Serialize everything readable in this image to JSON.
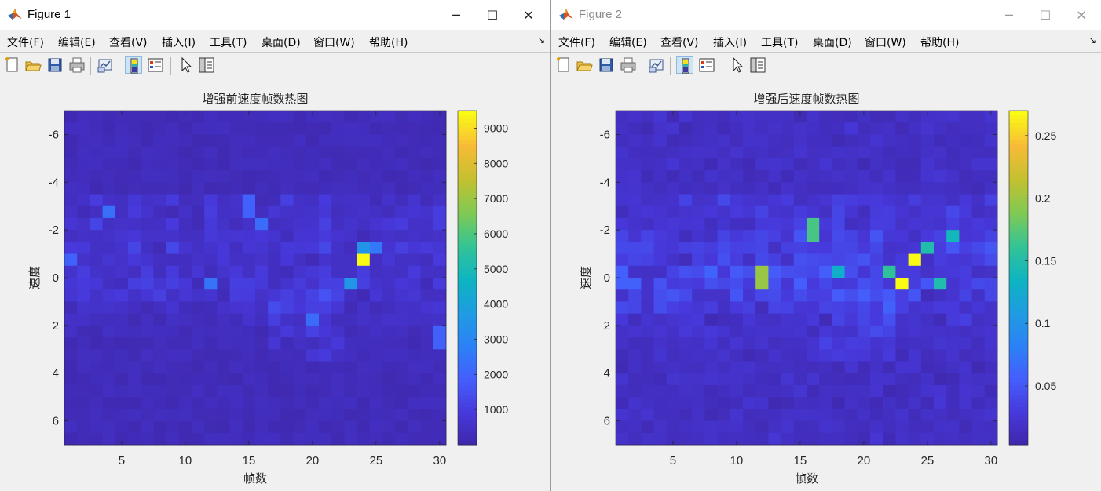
{
  "menu_labels": [
    "文件(F)",
    "编辑(E)",
    "查看(V)",
    "插入(I)",
    "工具(T)",
    "桌面(D)",
    "窗口(W)",
    "帮助(H)"
  ],
  "windows": [
    {
      "title": "Figure 1",
      "active": true,
      "chart_data": {
        "type": "heatmap",
        "title": "增强前速度帧数热图",
        "xlabel": "帧数",
        "ylabel": "速度",
        "x_ticks": [
          "5",
          "10",
          "15",
          "20",
          "25",
          "30"
        ],
        "y_ticks": [
          "-6",
          "-4",
          "-2",
          "0",
          "2",
          "4",
          "6"
        ],
        "xlim": [
          0.5,
          30.5
        ],
        "ylim": [
          -7,
          7
        ],
        "y_reversed": true,
        "colorbar_ticks": [
          "1000",
          "2000",
          "3000",
          "4000",
          "5000",
          "6000",
          "7000",
          "8000",
          "9000"
        ],
        "clim": [
          0,
          9500
        ],
        "colormap": "parula",
        "hot_spots": [
          {
            "frame": 24,
            "speed": -0.9,
            "value": 9500
          },
          {
            "frame": 24,
            "speed": -1.1,
            "value": 3500
          },
          {
            "frame": 25,
            "speed": -1.3,
            "value": 2600
          },
          {
            "frame": 23,
            "speed": 0.2,
            "value": 3600
          },
          {
            "frame": 12,
            "speed": 0.1,
            "value": 2500
          },
          {
            "frame": 4,
            "speed": -2.8,
            "value": 2400
          },
          {
            "frame": 16,
            "speed": -2.1,
            "value": 2300
          },
          {
            "frame": 15,
            "speed": -3.0,
            "value": 2000
          },
          {
            "frame": 20,
            "speed": 1.6,
            "value": 2300
          },
          {
            "frame": 30,
            "speed": 2.5,
            "value": 2000
          },
          {
            "frame": 1,
            "speed": -0.6,
            "value": 2000
          }
        ]
      }
    },
    {
      "title": "Figure 2",
      "active": false,
      "chart_data": {
        "type": "heatmap",
        "title": "增强后速度帧数热图",
        "xlabel": "帧数",
        "ylabel": "速度",
        "x_ticks": [
          "5",
          "10",
          "15",
          "20",
          "25",
          "30"
        ],
        "y_ticks": [
          "-6",
          "-4",
          "-2",
          "0",
          "2",
          "4",
          "6"
        ],
        "xlim": [
          0.5,
          30.5
        ],
        "ylim": [
          -7,
          7
        ],
        "y_reversed": true,
        "colorbar_ticks": [
          "0.05",
          "0.1",
          "0.15",
          "0.2",
          "0.25"
        ],
        "clim": [
          0.003,
          0.27
        ],
        "colormap": "parula",
        "hot_spots": [
          {
            "frame": 24,
            "speed": -0.9,
            "value": 0.27
          },
          {
            "frame": 23,
            "speed": 0.2,
            "value": 0.27
          },
          {
            "frame": 12,
            "speed": 0.0,
            "value": 0.2
          },
          {
            "frame": 22,
            "speed": -0.1,
            "value": 0.16
          },
          {
            "frame": 16,
            "speed": -2.0,
            "value": 0.17
          },
          {
            "frame": 25,
            "speed": -1.3,
            "value": 0.15
          },
          {
            "frame": 27,
            "speed": -1.8,
            "value": 0.14
          },
          {
            "frame": 26,
            "speed": 0.4,
            "value": 0.15
          },
          {
            "frame": 18,
            "speed": -0.3,
            "value": 0.13
          }
        ]
      }
    }
  ]
}
